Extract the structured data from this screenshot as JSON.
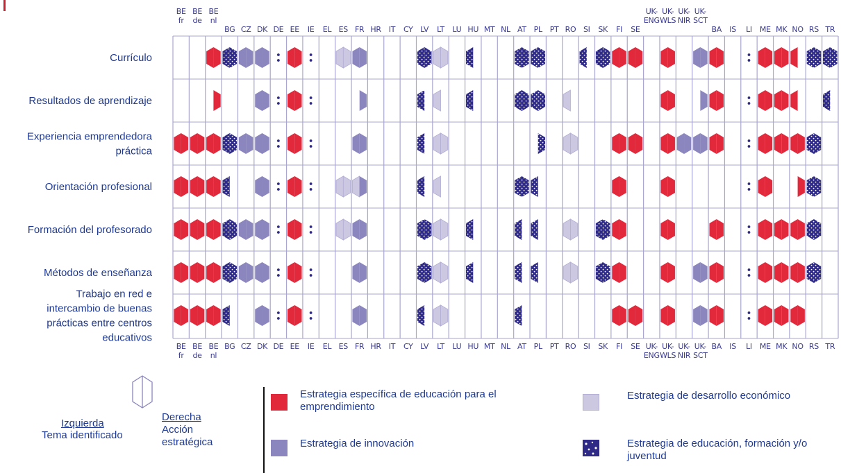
{
  "chart_data": {
    "type": "table",
    "columns": [
      {
        "top": [
          "BE",
          "fr"
        ],
        "bottom": [
          "BE",
          "fr"
        ]
      },
      {
        "top": [
          "BE",
          "de"
        ],
        "bottom": [
          "BE",
          "de"
        ]
      },
      {
        "top": [
          "BE",
          "nl"
        ],
        "bottom": [
          "BE",
          "nl"
        ]
      },
      {
        "top": [
          "BG"
        ],
        "bottom": [
          "BG"
        ]
      },
      {
        "top": [
          "CZ"
        ],
        "bottom": [
          "CZ"
        ]
      },
      {
        "top": [
          "DK"
        ],
        "bottom": [
          "DK"
        ]
      },
      {
        "top": [
          "DE"
        ],
        "bottom": [
          "DE"
        ]
      },
      {
        "top": [
          "EE"
        ],
        "bottom": [
          "EE"
        ]
      },
      {
        "top": [
          "IE"
        ],
        "bottom": [
          "IE"
        ]
      },
      {
        "top": [
          "EL"
        ],
        "bottom": [
          "EL"
        ]
      },
      {
        "top": [
          "ES"
        ],
        "bottom": [
          "ES"
        ]
      },
      {
        "top": [
          "FR"
        ],
        "bottom": [
          "FR"
        ]
      },
      {
        "top": [
          "HR"
        ],
        "bottom": [
          "HR"
        ]
      },
      {
        "top": [
          "IT"
        ],
        "bottom": [
          "IT"
        ]
      },
      {
        "top": [
          "CY"
        ],
        "bottom": [
          "CY"
        ]
      },
      {
        "top": [
          "LV"
        ],
        "bottom": [
          "LV"
        ]
      },
      {
        "top": [
          "LT"
        ],
        "bottom": [
          "LT"
        ]
      },
      {
        "top": [
          "LU"
        ],
        "bottom": [
          "LU"
        ]
      },
      {
        "top": [
          "HU"
        ],
        "bottom": [
          "HU"
        ]
      },
      {
        "top": [
          "MT"
        ],
        "bottom": [
          "MT"
        ]
      },
      {
        "top": [
          "NL"
        ],
        "bottom": [
          "NL"
        ]
      },
      {
        "top": [
          "AT"
        ],
        "bottom": [
          "AT"
        ]
      },
      {
        "top": [
          "PL"
        ],
        "bottom": [
          "PL"
        ]
      },
      {
        "top": [
          "PT"
        ],
        "bottom": [
          "PT"
        ]
      },
      {
        "top": [
          "RO"
        ],
        "bottom": [
          "RO"
        ]
      },
      {
        "top": [
          "SI"
        ],
        "bottom": [
          "SI"
        ]
      },
      {
        "top": [
          "SK"
        ],
        "bottom": [
          "SK"
        ]
      },
      {
        "top": [
          "FI"
        ],
        "bottom": [
          "FI"
        ]
      },
      {
        "top": [
          "SE"
        ],
        "bottom": [
          "SE"
        ]
      },
      {
        "top": [
          "UK-",
          "ENG"
        ],
        "bottom": [
          "UK-",
          "ENG"
        ]
      },
      {
        "top": [
          "UK-",
          "WLS"
        ],
        "bottom": [
          "UK-",
          "WLS"
        ]
      },
      {
        "top": [
          "UK-",
          "NIR"
        ],
        "bottom": [
          "UK-",
          "NIR"
        ]
      },
      {
        "top": [
          "UK-",
          "SCT"
        ],
        "bottom": [
          "UK-",
          "SCT"
        ]
      },
      {
        "top": [
          "BA"
        ],
        "bottom": [
          "BA"
        ]
      },
      {
        "top": [
          "IS"
        ],
        "bottom": [
          "IS"
        ]
      },
      {
        "top": [
          "LI"
        ],
        "bottom": [
          "LI"
        ]
      },
      {
        "top": [
          "ME"
        ],
        "bottom": [
          "ME"
        ]
      },
      {
        "top": [
          "MK"
        ],
        "bottom": [
          "MK"
        ]
      },
      {
        "top": [
          "NO"
        ],
        "bottom": [
          "NO"
        ]
      },
      {
        "top": [
          "RS"
        ],
        "bottom": [
          "RS"
        ]
      },
      {
        "top": [
          "TR"
        ],
        "bottom": [
          "TR"
        ]
      }
    ],
    "rows": [
      [
        "Currículo"
      ],
      [
        "Resultados de aprendizaje"
      ],
      [
        "Experiencia emprendedora",
        "práctica"
      ],
      [
        "Orientación profesional"
      ],
      [
        "Formación del profesorado"
      ],
      [
        "Métodos de enseñanza"
      ],
      [
        "Trabajo en red e",
        "intercambio de buenas",
        "prácticas entre centros",
        "educativos"
      ]
    ],
    "cell_legend": "code per cell: '.' = none, ':' = not applicable marker; otherwise two letters [left half][right half], each E/I/D/F/- (E specific entrepreneurship education strategy, I innovation strategy, D economic development strategy, F education/training/youth strategy, - not present)",
    "cells": [
      [
        "-",
        "-",
        "EE",
        "FF",
        "II",
        "II",
        ":",
        "EE",
        ":",
        ".",
        "DD",
        "II",
        ".",
        ".",
        ".",
        "FF",
        "DD",
        ".",
        "F-",
        ".",
        ".",
        "FF",
        "FF",
        ".",
        ".",
        "F-",
        "FF",
        "EE",
        "EE",
        ".",
        "EE",
        ".",
        "II",
        "EE",
        ".",
        ":",
        "EE",
        "EE",
        "E-",
        "FF",
        "FF"
      ],
      [
        "-",
        "-",
        "-E",
        ".",
        ".",
        "II",
        ":",
        "EE",
        ":",
        ".",
        ".",
        "-I",
        ".",
        ".",
        ".",
        "F-",
        "D-",
        ".",
        "F-",
        ".",
        ".",
        "FF",
        "FF",
        ".",
        "D-",
        ".",
        ".",
        ".",
        ".",
        ".",
        "EE",
        ".",
        "-I",
        "EE",
        ".",
        ":",
        "EE",
        "EE",
        "E-",
        ".",
        "F-"
      ],
      [
        "EE",
        "EE",
        "EE",
        "FF",
        "II",
        "II",
        ":",
        "EE",
        ":",
        ".",
        ".",
        "II",
        ".",
        ".",
        ".",
        "F-",
        "DD",
        ".",
        ".",
        ".",
        ".",
        ".",
        "-F",
        ".",
        "DD",
        ".",
        ".",
        "EE",
        "EE",
        ".",
        "EE",
        "II",
        "II",
        "EE",
        ".",
        ":",
        "EE",
        "EE",
        "EE",
        "FF",
        "."
      ],
      [
        "EE",
        "EE",
        "EE",
        "F-",
        ".",
        "II",
        ":",
        "EE",
        ":",
        ".",
        "DD",
        "DI",
        ".",
        ".",
        ".",
        "F-",
        "D-",
        ".",
        ".",
        ".",
        ".",
        "FF",
        "F-",
        ".",
        ".",
        ".",
        ".",
        "EE",
        ".",
        ".",
        "EE",
        ".",
        ".",
        ".",
        ".",
        ":",
        "EE",
        ".",
        "-E",
        "FF",
        "."
      ],
      [
        "EE",
        "EE",
        "EE",
        "FF",
        "II",
        "II",
        ":",
        "EE",
        ":",
        ".",
        "DD",
        "II",
        ".",
        ".",
        ".",
        "FF",
        "DD",
        ".",
        "F-",
        ".",
        ".",
        "F-",
        "F-",
        ".",
        "DD",
        ".",
        "FF",
        "EE",
        ".",
        ".",
        "EE",
        ".",
        ".",
        "EE",
        ".",
        ":",
        "EE",
        "EE",
        "EE",
        "FF",
        "."
      ],
      [
        "EE",
        "EE",
        "EE",
        "FF",
        "II",
        "II",
        ":",
        "EE",
        ":",
        ".",
        ".",
        "II",
        ".",
        ".",
        ".",
        "FF",
        "DD",
        ".",
        "F-",
        ".",
        ".",
        "F-",
        "F-",
        ".",
        "DD",
        ".",
        "FF",
        "EE",
        ".",
        ".",
        "EE",
        ".",
        "II",
        "EE",
        ".",
        ":",
        "EE",
        "EE",
        "EE",
        "FF",
        "."
      ],
      [
        "EE",
        "EE",
        "EE",
        "F-",
        ".",
        "II",
        ":",
        "EE",
        ":",
        ".",
        ".",
        "II",
        ".",
        ".",
        ".",
        "F-",
        "DD",
        ".",
        ".",
        ".",
        ".",
        "F-",
        ".",
        ".",
        ".",
        ".",
        ".",
        "EE",
        "EE",
        ".",
        "EE",
        ".",
        "II",
        "EE",
        ".",
        ":",
        "EE",
        "EE",
        "EE",
        ".",
        "."
      ]
    ]
  },
  "colors": {
    "specific": "#e2283b",
    "innovation": "#8b86bd",
    "economic": "#ccc8e2",
    "education": "#2e2a86",
    "text": "#1f3a93",
    "grid": "#a9a6cf"
  },
  "legend": {
    "left_label": "Izquierda",
    "right_label": "Derecha",
    "left_desc": "Tema identificado",
    "right_desc": "Acción estratégica",
    "specific": "Estrategia específica de educación para el emprendimiento",
    "innovation": "Estrategia de innovación",
    "economic": "Estrategia de desarrollo económico",
    "education": "Estrategia de educación, formación y/o juventud"
  }
}
